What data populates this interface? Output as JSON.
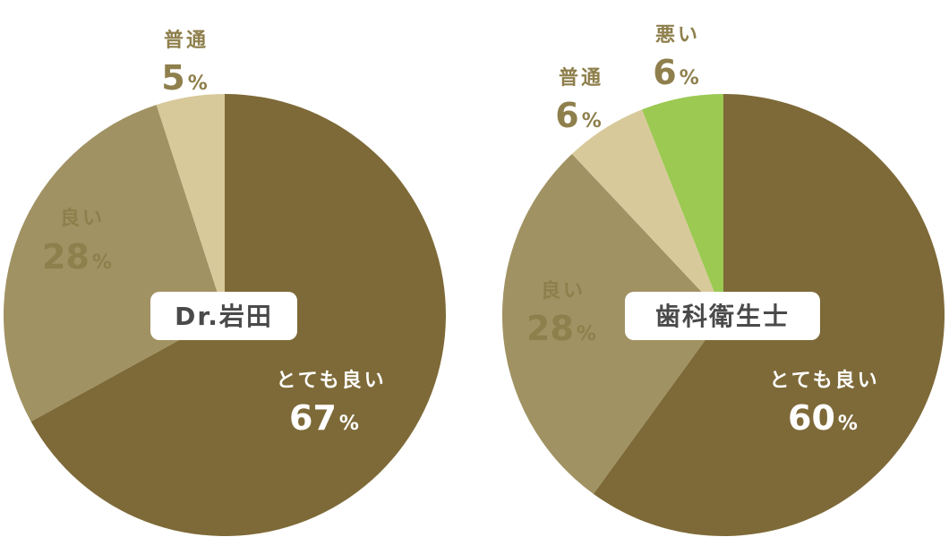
{
  "colors": {
    "very_good": "#7e6a38",
    "good": "#a09262",
    "normal": "#d8c99a",
    "bad": "#9bc952",
    "label_on_dark": "#ffffff",
    "label_on_light": "#8e7f4c",
    "box_text": "#4a4a4a",
    "box_bg": "#ffffff"
  },
  "chart_data": [
    {
      "type": "pie",
      "title": "Dr.岩田",
      "slices": [
        {
          "label": "とても良い",
          "value": 67,
          "value_text": "67",
          "color_key": "very_good"
        },
        {
          "label": "良い",
          "value": 28,
          "value_text": "28",
          "color_key": "good"
        },
        {
          "label": "普通",
          "value": 5,
          "value_text": "5",
          "color_key": "normal"
        }
      ],
      "unit": "%",
      "start": "12 o'clock",
      "direction": "clockwise"
    },
    {
      "type": "pie",
      "title": "歯科衛生士",
      "slices": [
        {
          "label": "とても良い",
          "value": 60,
          "value_text": "60",
          "color_key": "very_good"
        },
        {
          "label": "良い",
          "value": 28,
          "value_text": "28",
          "color_key": "good"
        },
        {
          "label": "普通",
          "value": 6,
          "value_text": "6",
          "color_key": "normal"
        },
        {
          "label": "悪い",
          "value": 6,
          "value_text": "6",
          "color_key": "bad"
        }
      ],
      "unit": "%",
      "start": "12 o'clock",
      "direction": "clockwise"
    }
  ]
}
